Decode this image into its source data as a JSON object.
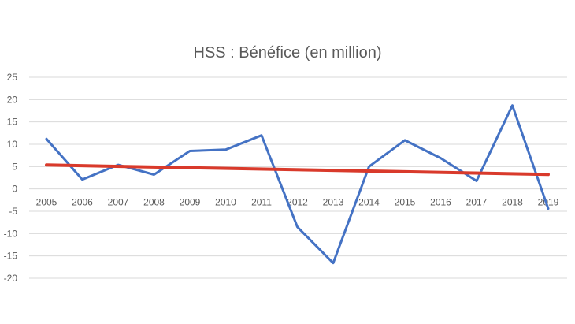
{
  "chart_data": {
    "type": "line",
    "title": "HSS : Bénéfice (en million)",
    "xlabel": "",
    "ylabel": "",
    "categories": [
      "2005",
      "2006",
      "2007",
      "2008",
      "2009",
      "2010",
      "2011",
      "2012",
      "2013",
      "2014",
      "2015",
      "2016",
      "2017",
      "2018",
      "2019"
    ],
    "series": [
      {
        "values": [
          11.2,
          2.1,
          5.4,
          3.2,
          8.5,
          8.8,
          12.0,
          -8.5,
          -16.6,
          5.0,
          10.9,
          6.9,
          1.8,
          18.7,
          -4.4
        ],
        "color": "#4472C4"
      },
      {
        "kind": "trendline",
        "values": [
          5.35,
          5.2,
          5.05,
          4.9,
          4.75,
          4.6,
          4.45,
          4.3,
          4.15,
          4.0,
          3.85,
          3.7,
          3.55,
          3.4,
          3.25
        ],
        "color": "#D93A2B"
      }
    ],
    "ylim": [
      -20,
      25
    ],
    "yticks": [
      "25",
      "20",
      "15",
      "10",
      "5",
      "0",
      "-5",
      "-10",
      "-15",
      "-20"
    ],
    "grid": true,
    "legend": "none"
  }
}
